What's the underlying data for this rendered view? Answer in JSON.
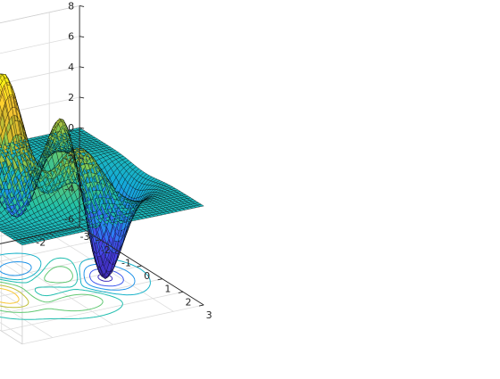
{
  "chart_data": {
    "type": "surface",
    "function": "peaks",
    "plot": "surface with contour projected on floor",
    "colormap": "parula",
    "colors": {
      "axis": "#262626",
      "grid": "#dcdcdc",
      "mesh": "#000000",
      "colormap_stops": [
        "#3e26a8",
        "#4743e8",
        "#2f7cf7",
        "#13abd8",
        "#23c1a8",
        "#80cb57",
        "#d2ba2d",
        "#feC834",
        "#f9fb0e"
      ]
    },
    "x": {
      "min": -3,
      "max": 3,
      "ticks": [
        -3,
        -2,
        -1,
        0,
        1,
        2,
        3
      ],
      "labels": [
        "-3",
        "-2",
        "-1",
        "0",
        "1",
        "2",
        "3"
      ]
    },
    "y": {
      "min": -3,
      "max": 3,
      "ticks": [
        -2,
        0,
        2
      ],
      "labels": [
        "-2",
        "0",
        "2"
      ]
    },
    "z": {
      "min": -6.5,
      "max": 8,
      "ticks": [
        -6,
        -4,
        -2,
        0,
        2,
        4,
        6,
        8
      ],
      "labels": [
        "-6",
        "-4",
        "-2",
        "0",
        "2",
        "4",
        "6",
        "8"
      ]
    },
    "grid": "on",
    "contour_levels": [
      -6,
      -4,
      -2,
      -0.5,
      0.5,
      2,
      4,
      6
    ]
  }
}
